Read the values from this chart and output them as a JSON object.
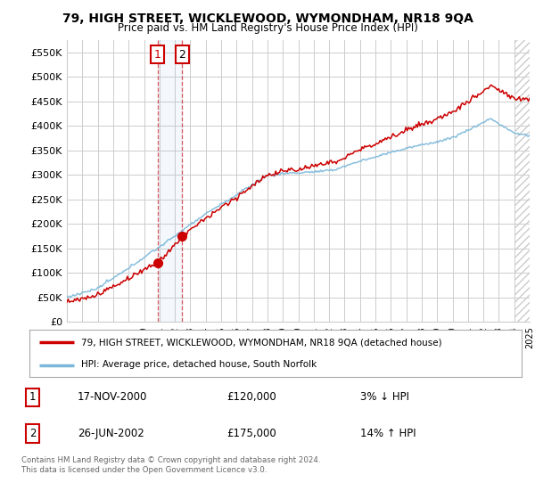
{
  "title": "79, HIGH STREET, WICKLEWOOD, WYMONDHAM, NR18 9QA",
  "subtitle": "Price paid vs. HM Land Registry's House Price Index (HPI)",
  "ylabel_ticks": [
    "£0",
    "£50K",
    "£100K",
    "£150K",
    "£200K",
    "£250K",
    "£300K",
    "£350K",
    "£400K",
    "£450K",
    "£500K",
    "£550K"
  ],
  "ytick_values": [
    0,
    50000,
    100000,
    150000,
    200000,
    250000,
    300000,
    350000,
    400000,
    450000,
    500000,
    550000
  ],
  "ylim": [
    0,
    575000
  ],
  "x_start_year": 1995,
  "x_end_year": 2025,
  "transaction1_date": 2000.88,
  "transaction1_price": 120000,
  "transaction2_date": 2002.48,
  "transaction2_price": 175000,
  "legend_entry1": "79, HIGH STREET, WICKLEWOOD, WYMONDHAM, NR18 9QA (detached house)",
  "legend_entry2": "HPI: Average price, detached house, South Norfolk",
  "table_row1": [
    "1",
    "17-NOV-2000",
    "£120,000",
    "3% ↓ HPI"
  ],
  "table_row2": [
    "2",
    "26-JUN-2002",
    "£175,000",
    "14% ↑ HPI"
  ],
  "footnote": "Contains HM Land Registry data © Crown copyright and database right 2024.\nThis data is licensed under the Open Government Licence v3.0.",
  "hpi_color": "#7ab8d9",
  "price_color": "#cc0000",
  "background_color": "#ffffff",
  "grid_color": "#cccccc",
  "highlight_color": "#ddeeff"
}
